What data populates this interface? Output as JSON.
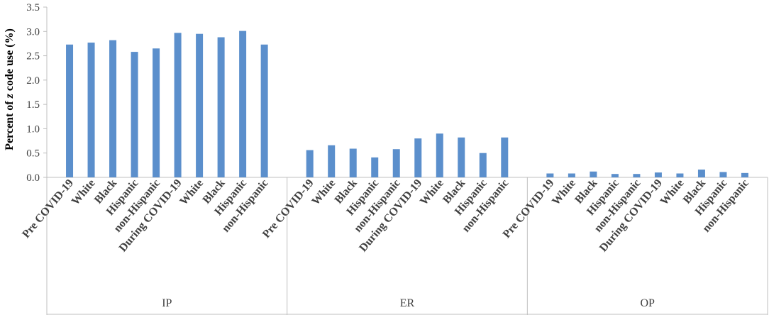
{
  "chart_data": {
    "type": "bar",
    "ylabel_parts": [
      "Percent of ",
      "z",
      " code use (%)"
    ],
    "ylim": [
      0,
      3.5
    ],
    "yticks": [
      "0.0",
      "0.5",
      "1.0",
      "1.5",
      "2.0",
      "2.5",
      "3.0",
      "3.5"
    ],
    "grid": false,
    "bar_color": "#5b8fcc",
    "groups": [
      {
        "label": "IP",
        "categories": [
          "Pre COVID-19",
          "White",
          "Black",
          "Hispanic",
          "non-Hispanic",
          "During COVID-19",
          "White",
          "Black",
          "Hispanic",
          "non-Hispanic"
        ],
        "values": [
          2.73,
          2.77,
          2.82,
          2.58,
          2.65,
          2.97,
          2.95,
          2.88,
          3.01,
          2.73
        ]
      },
      {
        "label": "ER",
        "categories": [
          "Pre COVID-19",
          "White",
          "Black",
          "Hispanic",
          "non-Hispanic",
          "During COVID-19",
          "White",
          "Black",
          "Hispanic",
          "non-Hispanic"
        ],
        "values": [
          0.56,
          0.66,
          0.59,
          0.41,
          0.58,
          0.8,
          0.9,
          0.82,
          0.5,
          0.82
        ]
      },
      {
        "label": "OP",
        "categories": [
          "Pre COVID-19",
          "White",
          "Black",
          "Hispanic",
          "non-Hispanic",
          "During COVID-19",
          "White",
          "Black",
          "Hispanic",
          "non-Hispanic"
        ],
        "values": [
          0.08,
          0.08,
          0.12,
          0.07,
          0.07,
          0.1,
          0.08,
          0.16,
          0.11,
          0.09
        ]
      }
    ]
  }
}
